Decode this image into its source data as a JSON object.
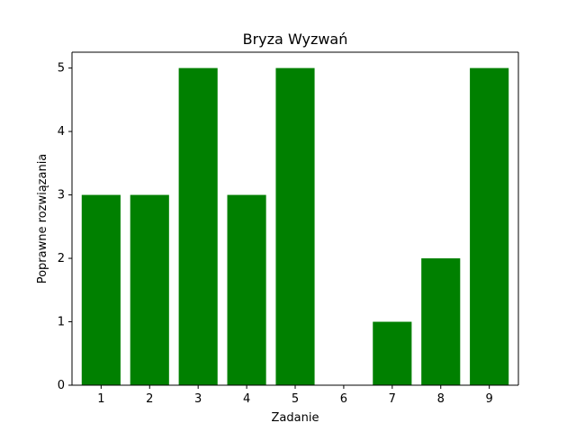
{
  "chart_data": {
    "type": "bar",
    "title": "Bryza Wyzwań",
    "xlabel": "Zadanie",
    "ylabel": "Poprawne rozwiązania",
    "categories": [
      "1",
      "2",
      "3",
      "4",
      "5",
      "6",
      "7",
      "8",
      "9"
    ],
    "values": [
      3,
      3,
      5,
      3,
      5,
      0,
      1,
      2,
      5
    ],
    "yticks": [
      "0",
      "1",
      "2",
      "3",
      "4",
      "5"
    ],
    "ylim": [
      0,
      5.25
    ],
    "bar_color": "#008000",
    "grid": false,
    "legend": "none"
  }
}
